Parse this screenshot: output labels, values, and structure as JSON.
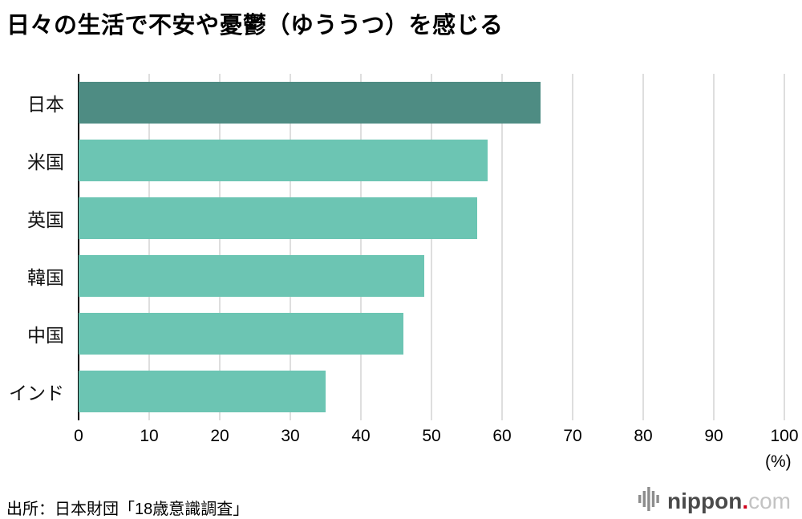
{
  "title": "日々の生活で不安や憂鬱（ゆううつ）を感じる",
  "chart_data": {
    "type": "bar",
    "orientation": "horizontal",
    "title": "日々の生活で不安や憂鬱（ゆううつ）を感じる",
    "categories": [
      "日本",
      "米国",
      "英国",
      "韓国",
      "中国",
      "インド"
    ],
    "values": [
      65.5,
      58.0,
      56.5,
      49.0,
      46.0,
      35.0
    ],
    "xlim": [
      0,
      100
    ],
    "xticks": [
      0,
      10,
      20,
      30,
      40,
      50,
      60,
      70,
      80,
      90,
      100
    ],
    "xlabel": "(%)",
    "grid": true,
    "legend": false,
    "bar_colors": {
      "highlight": "#4e8c83",
      "default": "#6cc5b3"
    },
    "highlight_index": 0
  },
  "axis": {
    "unit_label": "(%)"
  },
  "footer": {
    "source": "出所：日本財団「18歳意識調査」",
    "logo": {
      "name": "nippon",
      "dot": ".",
      "tld": "com"
    }
  }
}
